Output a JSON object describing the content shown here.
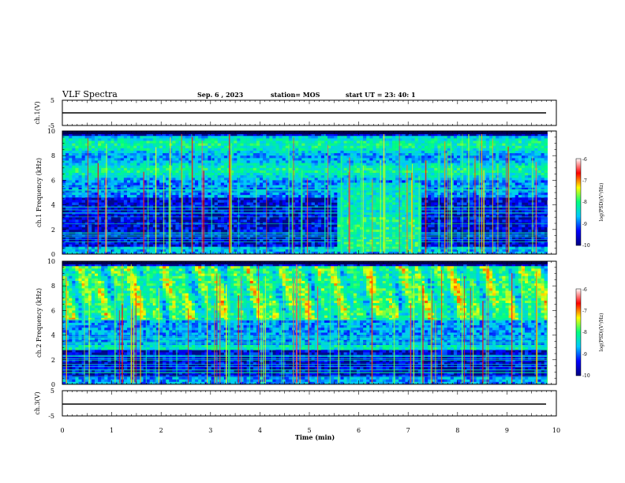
{
  "header": {
    "title": "VLF Spectra",
    "date": "Sep. 6 , 2023",
    "station": "station= MOS",
    "start": "start UT =  23: 40: 1"
  },
  "chart_data": [
    {
      "type": "line",
      "panel": "ch1-waveform",
      "ylabel": "ch.1(V)",
      "yticks": [
        "5",
        "-5"
      ],
      "ylim": [
        -5,
        5
      ],
      "x": [
        0,
        10
      ],
      "values": [
        0,
        0
      ]
    },
    {
      "type": "heatmap",
      "panel": "ch1-spectrogram",
      "ylabel": "ch.1 Frequency (kHz)",
      "ylim": [
        0,
        10
      ],
      "yticks": [
        "0",
        "2",
        "4",
        "6",
        "8",
        "10"
      ],
      "colorbar": {
        "label": "log(PSD)(V²/Hz)",
        "ticks": [
          "-6",
          "-7",
          "-8",
          "-9",
          "-10"
        ],
        "range": [
          -10,
          -6
        ]
      },
      "colormap": [
        "#000080",
        "#0000ff",
        "#00c8ff",
        "#00ff80",
        "#ffff00",
        "#ff0000",
        "#ffffff"
      ],
      "noise_bursts": [
        {
          "x_start": 5.58,
          "x_end": 7.25,
          "f_low": 0.2,
          "f_high": 5.8
        }
      ]
    },
    {
      "type": "heatmap",
      "panel": "ch2-spectrogram",
      "ylabel": "ch.2 Frequency (kHz)",
      "ylim": [
        0,
        10
      ],
      "yticks": [
        "0",
        "2",
        "4",
        "6",
        "8",
        "10"
      ],
      "colorbar": {
        "label": "log(PSD)(V²/Hz)",
        "ticks": [
          "-6",
          "-7",
          "-8",
          "-9",
          "-10"
        ],
        "range": [
          -10,
          -6
        ]
      },
      "colormap": [
        "#000080",
        "#0000ff",
        "#00c8ff",
        "#00ff80",
        "#ffff00",
        "#ff0000",
        "#ffffff"
      ]
    },
    {
      "type": "line",
      "panel": "ch3-waveform",
      "ylabel": "ch.3(V)",
      "yticks": [
        "5",
        "-5"
      ],
      "ylim": [
        -5,
        5
      ],
      "x": [
        0,
        10
      ],
      "values": [
        0,
        0
      ]
    }
  ],
  "xaxis": {
    "label": "Time (min)",
    "ticks": [
      "0",
      "1",
      "2",
      "3",
      "4",
      "5",
      "6",
      "7",
      "8",
      "9",
      "10"
    ],
    "range": [
      0,
      10
    ],
    "data_end": 9.82
  }
}
